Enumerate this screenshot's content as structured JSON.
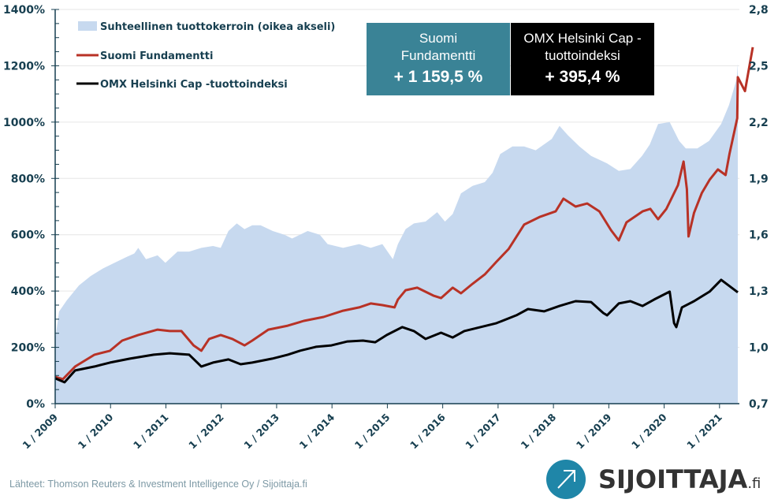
{
  "chart_data": {
    "type": "line",
    "title": "",
    "xlabel": "",
    "ylabel_left": "",
    "ylabel_right": "",
    "x_tick_labels": [
      "1 / 2009",
      "1 / 2010",
      "1 / 2011",
      "1 / 2012",
      "1 / 2013",
      "1 / 2014",
      "1 / 2015",
      "1 / 2016",
      "1 / 2017",
      "1 / 2018",
      "1 / 2019",
      "1 / 2020",
      "1 / 2021"
    ],
    "x_tick_values": [
      2009,
      2010,
      2011,
      2012,
      2013,
      2014,
      2015,
      2016,
      2017,
      2018,
      2019,
      2020,
      2021
    ],
    "xlim": [
      2009,
      2021.33
    ],
    "y_left": {
      "ticks": [
        "0%",
        "200%",
        "400%",
        "600%",
        "800%",
        "1000%",
        "1200%",
        "1400%"
      ],
      "tick_values": [
        0,
        200,
        400,
        600,
        800,
        1000,
        1200,
        1400
      ],
      "lim": [
        0,
        1400
      ]
    },
    "y_right": {
      "ticks": [
        "0,7",
        "1,0",
        "1,3",
        "1,6",
        "1,9",
        "2,2",
        "2,5",
        "2,8"
      ],
      "tick_values": [
        0.7,
        1.0,
        1.3,
        1.6,
        1.9,
        2.2,
        2.5,
        2.8
      ],
      "lim": [
        0.7,
        2.8
      ]
    },
    "grid": "horizontal",
    "legend_position": "top-left",
    "series": [
      {
        "name": "Suhteellinen tuottokerroin (oikea akseli)",
        "type": "area",
        "axis": "right",
        "color": "#c7d9ef",
        "x": [
          2009.0,
          2009.07,
          2009.21,
          2009.43,
          2009.64,
          2009.86,
          2010.07,
          2010.28,
          2010.43,
          2010.5,
          2010.64,
          2010.85,
          2010.99,
          2011.21,
          2011.42,
          2011.64,
          2011.85,
          2011.99,
          2012.13,
          2012.28,
          2012.42,
          2012.56,
          2012.71,
          2012.93,
          2013.14,
          2013.28,
          2013.56,
          2013.78,
          2013.92,
          2014.2,
          2014.49,
          2014.7,
          2014.91,
          2015.1,
          2015.19,
          2015.33,
          2015.48,
          2015.69,
          2015.9,
          2016.04,
          2016.18,
          2016.33,
          2016.54,
          2016.76,
          2016.9,
          2017.04,
          2017.26,
          2017.47,
          2017.68,
          2017.97,
          2018.11,
          2018.26,
          2018.47,
          2018.68,
          2018.97,
          2019.18,
          2019.39,
          2019.6,
          2019.74,
          2019.89,
          2020.1,
          2020.27,
          2020.39,
          2020.6,
          2020.81,
          2021.03,
          2021.17,
          2021.31,
          2021.33
        ],
        "values": [
          1.04,
          1.19,
          1.25,
          1.33,
          1.38,
          1.42,
          1.45,
          1.48,
          1.5,
          1.53,
          1.47,
          1.49,
          1.45,
          1.51,
          1.51,
          1.53,
          1.54,
          1.53,
          1.62,
          1.66,
          1.63,
          1.65,
          1.65,
          1.62,
          1.6,
          1.58,
          1.62,
          1.6,
          1.55,
          1.53,
          1.55,
          1.53,
          1.55,
          1.47,
          1.55,
          1.63,
          1.66,
          1.67,
          1.72,
          1.67,
          1.71,
          1.82,
          1.86,
          1.88,
          1.93,
          2.03,
          2.07,
          2.07,
          2.05,
          2.11,
          2.18,
          2.13,
          2.07,
          2.02,
          1.98,
          1.94,
          1.95,
          2.02,
          2.08,
          2.19,
          2.2,
          2.1,
          2.06,
          2.06,
          2.1,
          2.19,
          2.29,
          2.43,
          2.51
        ]
      },
      {
        "name": "Suomi Fundamentti",
        "type": "line",
        "axis": "left",
        "color": "#b83226",
        "x": [
          2009.0,
          2009.14,
          2009.36,
          2009.71,
          2009.99,
          2010.21,
          2010.5,
          2010.85,
          2011.07,
          2011.28,
          2011.5,
          2011.64,
          2011.78,
          2011.99,
          2012.2,
          2012.42,
          2012.56,
          2012.85,
          2013.2,
          2013.49,
          2013.85,
          2014.2,
          2014.49,
          2014.7,
          2014.91,
          2015.13,
          2015.19,
          2015.33,
          2015.54,
          2015.83,
          2015.97,
          2016.18,
          2016.33,
          2016.54,
          2016.76,
          2016.97,
          2017.19,
          2017.47,
          2017.76,
          2018.04,
          2018.18,
          2018.4,
          2018.61,
          2018.83,
          2019.04,
          2019.18,
          2019.32,
          2019.61,
          2019.75,
          2019.89,
          2020.04,
          2020.25,
          2020.35,
          2020.41,
          2020.44,
          2020.54,
          2020.68,
          2020.82,
          2020.97,
          2021.11,
          2021.18,
          2021.32,
          2021.46,
          2021.6,
          2021.33
        ],
        "values": [
          95,
          87,
          132,
          174,
          188,
          224,
          244,
          263,
          258,
          258,
          207,
          188,
          230,
          244,
          230,
          207,
          224,
          263,
          277,
          294,
          308,
          330,
          342,
          356,
          350,
          342,
          370,
          403,
          412,
          384,
          375,
          412,
          392,
          426,
          459,
          504,
          549,
          636,
          664,
          683,
          728,
          700,
          711,
          683,
          616,
          580,
          644,
          683,
          692,
          655,
          692,
          776,
          860,
          762,
          594,
          678,
          748,
          795,
          832,
          812,
          888,
          1014,
          1110,
          1266,
          1159.5
        ]
      },
      {
        "name": "OMX Helsinki Cap -tuottoindeksi",
        "type": "line",
        "axis": "left",
        "color": "#000000",
        "x": [
          2009.0,
          2009.17,
          2009.36,
          2009.71,
          2009.99,
          2010.35,
          2010.78,
          2011.07,
          2011.42,
          2011.64,
          2011.85,
          2012.13,
          2012.35,
          2012.56,
          2012.92,
          2013.2,
          2013.42,
          2013.71,
          2013.99,
          2014.28,
          2014.56,
          2014.78,
          2014.99,
          2015.27,
          2015.48,
          2015.69,
          2015.97,
          2016.18,
          2016.39,
          2016.68,
          2016.97,
          2017.33,
          2017.54,
          2017.83,
          2018.11,
          2018.4,
          2018.68,
          2018.9,
          2018.97,
          2019.18,
          2019.39,
          2019.61,
          2019.82,
          2020.1,
          2020.18,
          2020.22,
          2020.32,
          2020.54,
          2020.82,
          2021.03,
          2021.33
        ],
        "values": [
          90,
          76,
          118,
          132,
          146,
          160,
          174,
          179,
          174,
          132,
          146,
          157,
          140,
          146,
          160,
          174,
          188,
          202,
          207,
          221,
          224,
          218,
          244,
          272,
          258,
          230,
          252,
          235,
          258,
          272,
          286,
          314,
          336,
          328,
          347,
          364,
          361,
          322,
          314,
          356,
          364,
          347,
          370,
          398,
          286,
          272,
          342,
          364,
          398,
          440,
          395.4
        ]
      }
    ],
    "annotations": [
      {
        "label_lines": [
          "Suomi",
          "Fundamentti"
        ],
        "value": "+ 1 159,5 %",
        "color": "#3a8396"
      },
      {
        "label_lines": [
          "OMX Helsinki Cap -",
          "tuottoindeksi"
        ],
        "value": "+ 395,4 %",
        "color": "#000000"
      }
    ]
  },
  "legend": {
    "items": [
      {
        "label": "Suhteellinen tuottokerroin (oikea akseli)",
        "swatch": "area",
        "color": "#c7d9ef"
      },
      {
        "label": "Suomi Fundamentti",
        "swatch": "line",
        "color": "#b83226"
      },
      {
        "label": "OMX Helsinki Cap -tuottoindeksi",
        "swatch": "line",
        "color": "#000000"
      }
    ]
  },
  "boxes": {
    "fund": {
      "line1": "Suomi",
      "line2": "Fundamentti",
      "value": "+ 1 159,5 %"
    },
    "omx": {
      "line1": "OMX Helsinki Cap -",
      "line2": "tuottoindeksi",
      "value": "+ 395,4 %"
    }
  },
  "footer": {
    "source": "Lähteet: Thomson Reuters & Investment Intelligence Oy / Sijoittaja.fi",
    "logo_text": "SIJOITTAJA",
    "logo_tld": ".fi"
  },
  "colors": {
    "axis": "#173f50",
    "grid": "#e6e6e6",
    "area": "#c7d9ef",
    "fund": "#b83226",
    "omx": "#000000",
    "box_fund": "#3a8396",
    "logo": "#1f86a8"
  }
}
